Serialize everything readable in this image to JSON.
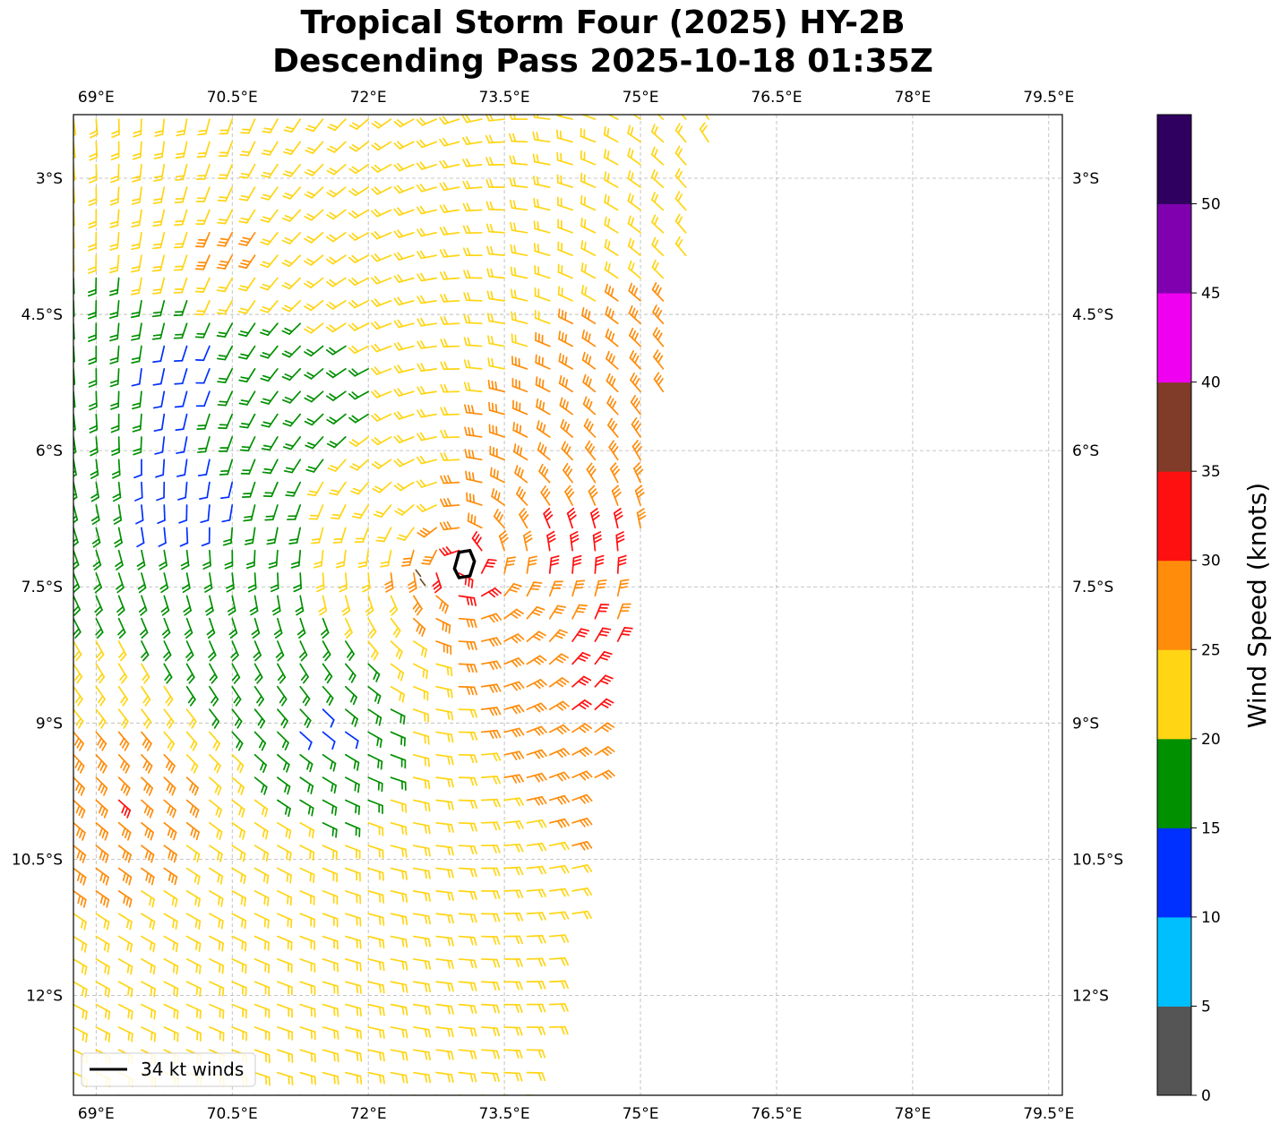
{
  "title": {
    "line1": "Tropical Storm Four (2025) HY-2B",
    "line2": "Descending Pass 2025-10-18 01:35Z"
  },
  "map": {
    "lon_range": [
      68.75,
      79.65
    ],
    "lat_range": [
      -13.1,
      -2.3
    ],
    "lon_ticks": [
      69,
      70.5,
      72,
      73.5,
      75,
      76.5,
      78,
      79.5
    ],
    "lon_tick_labels": [
      "69°E",
      "70.5°E",
      "72°E",
      "73.5°E",
      "75°E",
      "76.5°E",
      "78°E",
      "79.5°E"
    ],
    "lat_ticks": [
      -3,
      -4.5,
      -6,
      -7.5,
      -9,
      -10.5,
      -12
    ],
    "lat_tick_labels": [
      "3°S",
      "4.5°S",
      "6°S",
      "7.5°S",
      "9°S",
      "10.5°S",
      "12°S"
    ],
    "gridlines": true,
    "storm_center": {
      "lon": 73.05,
      "lat": -7.25
    },
    "wind_34kt_contour": [
      [
        73.0,
        -7.12
      ],
      [
        73.12,
        -7.1
      ],
      [
        73.17,
        -7.22
      ],
      [
        73.12,
        -7.38
      ],
      [
        73.0,
        -7.4
      ],
      [
        72.95,
        -7.3
      ],
      [
        73.0,
        -7.12
      ]
    ]
  },
  "legend": {
    "label": "34 kt winds",
    "position": "lower-left"
  },
  "colorbar": {
    "label": "Wind Speed (knots)",
    "bounds": [
      0,
      5,
      10,
      15,
      20,
      25,
      30,
      35,
      40,
      45,
      50,
      55
    ],
    "tick_values": [
      0,
      5,
      10,
      15,
      20,
      25,
      30,
      35,
      40,
      45,
      50
    ],
    "tick_labels": [
      "0",
      "5",
      "10",
      "15",
      "20",
      "25",
      "30",
      "35",
      "40",
      "45",
      "50"
    ],
    "colors": [
      "#555555",
      "#00bfff",
      "#0030ff",
      "#009000",
      "#ffd514",
      "#ff8c0a",
      "#ff1010",
      "#803c28",
      "#f000f0",
      "#8000b0",
      "#300060"
    ]
  },
  "chart_data": {
    "type": "wind_barbs",
    "title": "Tropical Storm Four (2025) HY-2B Descending Pass 2025-10-18 01:35Z",
    "units": "knots",
    "swath": {
      "west_lon": 68.75,
      "east_edge_lon_at_top": 75.8,
      "east_edge_lon_at_bottom": 73.9,
      "lat_top": -2.35,
      "lat_bottom": -13.1,
      "spacing_deg": 0.25
    },
    "wind_speed_samples": [
      {
        "lon": 69.5,
        "lat": -3.0,
        "kt": 22
      },
      {
        "lon": 70.5,
        "lat": -3.8,
        "kt": 27
      },
      {
        "lon": 70.0,
        "lat": -5.0,
        "kt": 12
      },
      {
        "lon": 70.0,
        "lat": -6.5,
        "kt": 11
      },
      {
        "lon": 71.5,
        "lat": -5.5,
        "kt": 17
      },
      {
        "lon": 72.3,
        "lat": -6.5,
        "kt": 22
      },
      {
        "lon": 73.0,
        "lat": -7.3,
        "kt": 33
      },
      {
        "lon": 74.3,
        "lat": -7.0,
        "kt": 32
      },
      {
        "lon": 74.0,
        "lat": -6.0,
        "kt": 27
      },
      {
        "lon": 74.5,
        "lat": -8.5,
        "kt": 32
      },
      {
        "lon": 71.5,
        "lat": -9.0,
        "kt": 13
      },
      {
        "lon": 70.8,
        "lat": -8.3,
        "kt": 17
      },
      {
        "lon": 69.3,
        "lat": -9.8,
        "kt": 31
      },
      {
        "lon": 70.5,
        "lat": -11.5,
        "kt": 22
      },
      {
        "lon": 72.5,
        "lat": -12.5,
        "kt": 22
      }
    ]
  }
}
